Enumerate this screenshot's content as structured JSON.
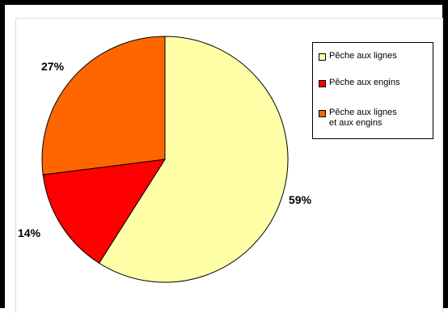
{
  "chart_data": {
    "type": "pie",
    "title": "",
    "categories": [
      "Pêche aux lignes",
      "Pêche aux engins",
      "Pêche aux lignes et aux engins"
    ],
    "values": [
      59,
      14,
      27
    ],
    "labels": [
      "59%",
      "14%",
      "27%"
    ],
    "colors": [
      "#FFFFA8",
      "#FF0000",
      "#FF6600"
    ],
    "legend_position": "right"
  },
  "legend": {
    "items": [
      {
        "label_line1": "Pêche aux lignes",
        "label_line2": "",
        "color": "#FFFFA8"
      },
      {
        "label_line1": "Pêche aux engins",
        "label_line2": "",
        "color": "#FF0000"
      },
      {
        "label_line1": "Pêche aux lignes",
        "label_line2": "et aux engins",
        "color": "#FF6600"
      }
    ]
  }
}
